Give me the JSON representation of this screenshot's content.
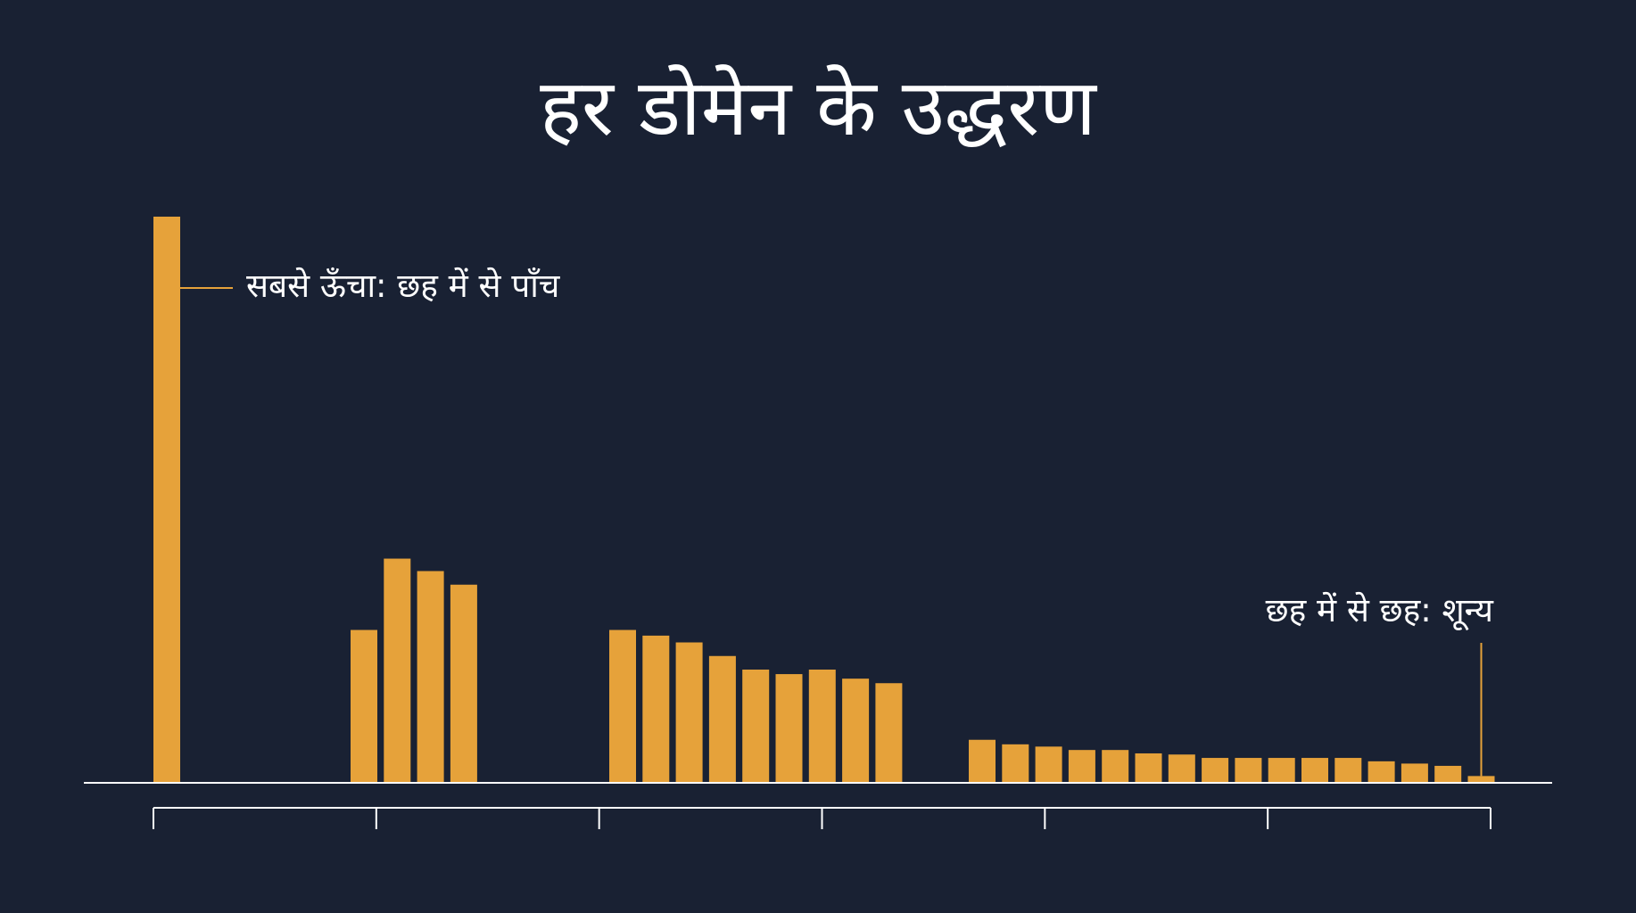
{
  "chart_data": {
    "type": "bar",
    "title": "हर डोमेन के उद्धरण",
    "xlabel": "",
    "ylabel": "",
    "ylim": [
      0,
      5
    ],
    "grid": false,
    "legend": "none",
    "colors": {
      "background": "#192133",
      "bar": "#E6A23A",
      "axis": "#FFFFFF",
      "text": "#FFFFFF"
    },
    "groups": [
      {
        "values": [
          5.0
        ]
      },
      {
        "values": [
          1.35,
          1.98,
          1.87,
          1.75
        ]
      },
      {
        "values": [
          1.35,
          1.3,
          1.24,
          1.12,
          1.0,
          0.96,
          1.0,
          0.92,
          0.88
        ]
      },
      {
        "values": [
          0.38,
          0.34,
          0.32,
          0.29,
          0.29,
          0.26,
          0.25,
          0.22,
          0.22,
          0.22,
          0.22,
          0.22,
          0.19,
          0.17,
          0.15,
          0.06
        ]
      }
    ],
    "x_axis_ticks": 7,
    "annotations": [
      {
        "text": "सबसे ऊँचा: छह में से पाँच",
        "target": "group-1-bar-1"
      },
      {
        "text": "छह में से छह: शून्य",
        "target": "last-bar"
      }
    ]
  }
}
